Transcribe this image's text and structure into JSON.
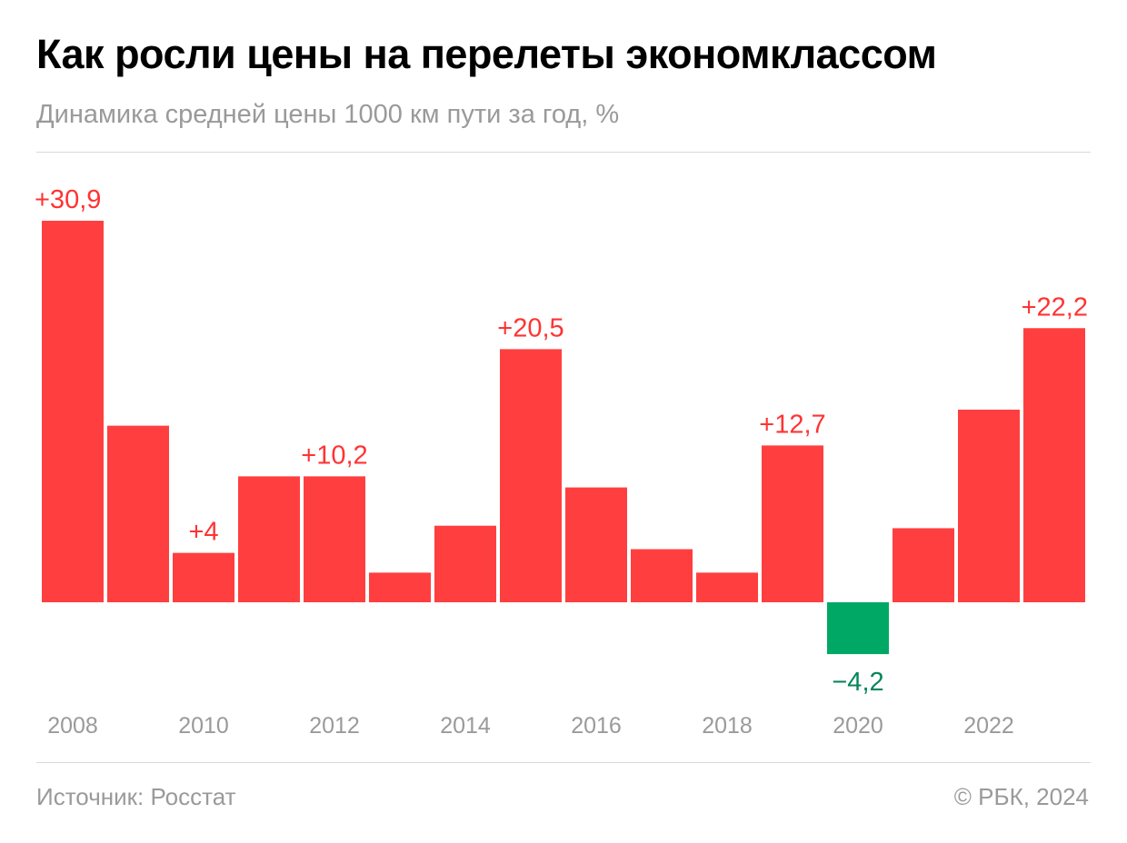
{
  "title": "Как росли цены на перелеты экономклассом",
  "subtitle": "Динамика средней цены 1000 км пути за год, %",
  "source": "Источник: Росстат",
  "copyright": "© РБК, 2024",
  "colors": {
    "positive": "#ff3f3f",
    "negative": "#00a865",
    "positive_label": "#ff3333",
    "negative_label": "#06865a"
  },
  "chart_data": {
    "type": "bar",
    "title": "Как росли цены на перелеты экономклассом",
    "subtitle": "Динамика средней цены 1000 км пути за год, %",
    "categories": [
      "2008",
      "2009",
      "2010",
      "2011",
      "2012",
      "2013",
      "2014",
      "2015",
      "2016",
      "2017",
      "2018",
      "2019",
      "2020",
      "2021",
      "2022",
      "2023"
    ],
    "values": [
      30.9,
      14.3,
      4.0,
      10.2,
      10.2,
      2.4,
      6.2,
      20.5,
      9.3,
      4.3,
      2.4,
      12.7,
      -4.2,
      6.0,
      15.6,
      22.2
    ],
    "data_labels": {
      "2008": "+30,9",
      "2010": "+4",
      "2012": "+10,2",
      "2015": "+20,5",
      "2019": "+12,7",
      "2020": "−4,2",
      "2023": "+22,2"
    },
    "tick_labels": [
      "2008",
      "2010",
      "2012",
      "2014",
      "2016",
      "2018",
      "2020",
      "2022"
    ],
    "xlabel": "",
    "ylabel": "",
    "grid": false,
    "legend": "none"
  }
}
